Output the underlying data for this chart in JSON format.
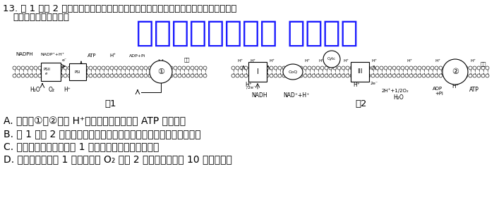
{
  "question_line1": "13. 图 1 和图 2 是在马铃薯叶肉细胞的膜结构上进行光合作用和有氧呼吸的部分过程。",
  "question_line2": "下列相关描述正确的是",
  "watermark": "微信公众号关注： 趣找答案",
  "options": [
    "A. 图中的①和②既是 H⁺的转运蛋白又是催化 ATP 合成的酶",
    "B. 图 1 和图 2 中膜结构均属于生物膜系统，与细胞膜成分和结构相似",
    "C. 只有叶肉细胞能进行图 1 过程，且只有白天才能进行",
    "D. 同一细胞中，图 1 过程形成的 O₂ 被图 2 过程利用要经过 10 层磷脂分子"
  ],
  "fig1_label": "图1",
  "fig2_label": "图2",
  "bg_color": "#ffffff",
  "text_color": "#000000",
  "watermark_color": "#1a1aff",
  "q_fontsize": 9.5,
  "opt_fontsize": 10.0,
  "wm_fontsize": 30,
  "fig_width": 7.0,
  "fig_height": 2.84,
  "dpi": 100
}
